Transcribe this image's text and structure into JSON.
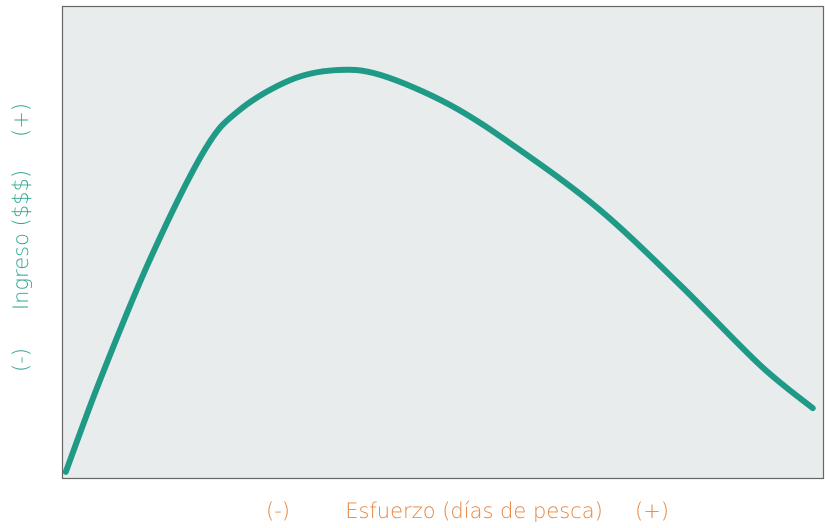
{
  "chart_data": {
    "type": "line",
    "x_label_min": "(-)",
    "x_label": "Esfuerzo (días de pesca)",
    "x_label_max": "(+)",
    "y_label_min": "(-)",
    "y_label": "Ingreso ($$$)",
    "y_label_max": "(+)",
    "x": [
      0.5,
      5.0,
      11.5,
      18.7,
      23.3,
      29.9,
      35.8,
      41.7,
      50.9,
      60.0,
      70.5,
      81.0,
      91.5,
      98.4
    ],
    "series": [
      {
        "color": "#1f9a86",
        "values": [
          1.3,
          20.8,
          46.2,
          69.5,
          78.0,
          84.3,
          86.4,
          85.4,
          79.0,
          69.5,
          56.8,
          40.9,
          23.9,
          14.8
        ]
      }
    ],
    "xlim": [
      0,
      100
    ],
    "ylim": [
      0,
      100
    ],
    "grid": false,
    "x_label_color": "#e8843c",
    "y_label_color": "#2fa592",
    "background": "#e9eced"
  }
}
